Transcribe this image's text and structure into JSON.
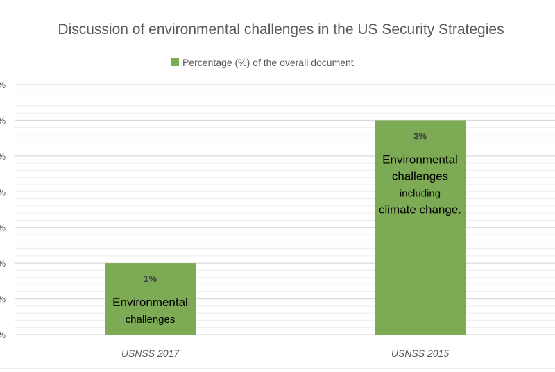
{
  "chart_data": {
    "type": "bar",
    "title": "Discussion of environmental challenges in the US Security Strategies",
    "xlabel": "",
    "ylabel": "",
    "categories": [
      "USNSS 2017",
      "USNSS 2015"
    ],
    "series": [
      {
        "name": "Percentage (%) of the overall document",
        "values": [
          1,
          3
        ],
        "color": "#7dab55"
      }
    ],
    "data_labels": [
      "1%",
      "3%"
    ],
    "annotations": [
      [
        "Environmental",
        "challenges"
      ],
      [
        "Environmental",
        "challenges",
        "including",
        "climate change."
      ]
    ],
    "y_tick_labels": [
      "%",
      "%",
      "%",
      "%",
      "%",
      "%",
      "%",
      "%"
    ],
    "ylim": [
      0,
      3.5
    ],
    "y_major_step": 0.5,
    "grid": true,
    "legend_position": "top"
  }
}
